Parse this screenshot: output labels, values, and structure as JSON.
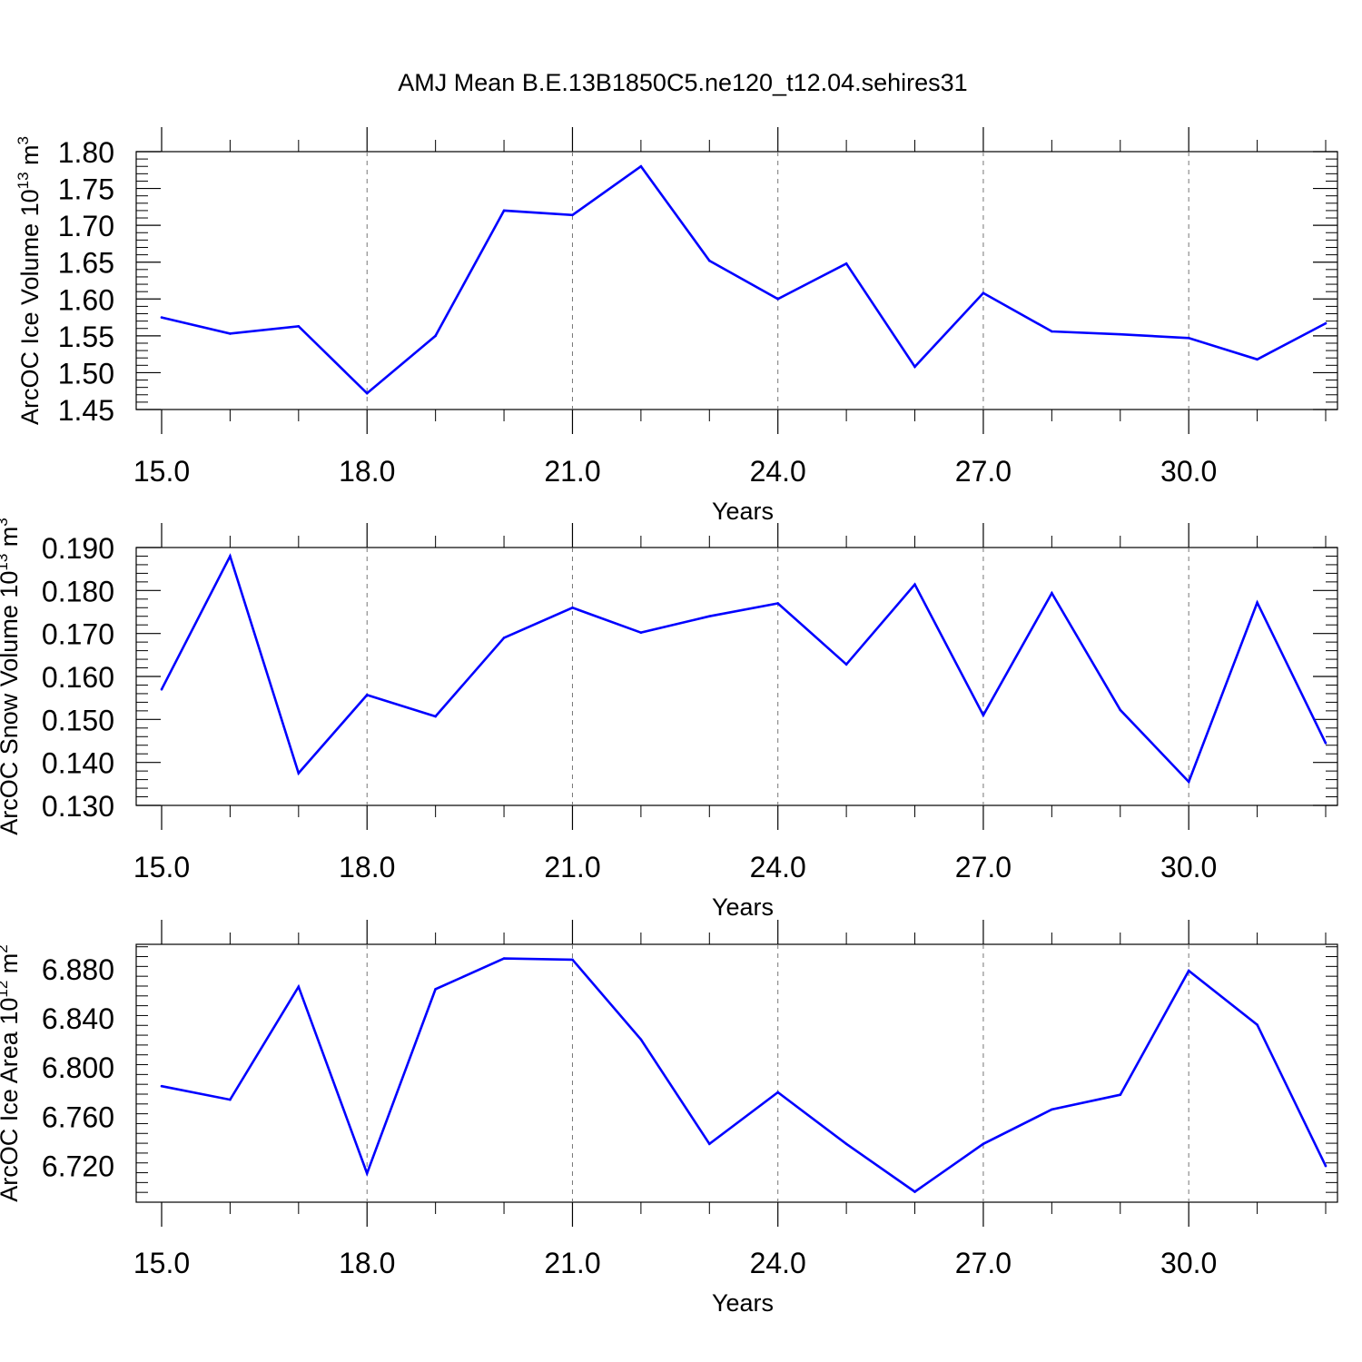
{
  "title": "AMJ Mean B.E.13B1850C5.ne120_t12.04.sehires31",
  "line_color": "#0000ff",
  "chart_data": [
    {
      "type": "line",
      "ylabel_main": "ArcOC Ice Volume 10",
      "ylabel_exp": "13",
      "ylabel_unit": "m",
      "ylabel_unit_exp": "3",
      "xlabel": "Years",
      "xlim": [
        15,
        32
      ],
      "ylim": [
        1.45,
        1.8
      ],
      "yticks_major": [
        "1.45",
        "1.50",
        "1.55",
        "1.60",
        "1.65",
        "1.70",
        "1.75",
        "1.80"
      ],
      "xticks_major": [
        "15.0",
        "18.0",
        "21.0",
        "24.0",
        "27.0",
        "30.0"
      ],
      "x": [
        15,
        16,
        17,
        18,
        19,
        20,
        21,
        22,
        23,
        24,
        25,
        26,
        27,
        28,
        29,
        30,
        31,
        32
      ],
      "values": [
        1.575,
        1.553,
        1.563,
        1.472,
        1.55,
        1.72,
        1.714,
        1.78,
        1.652,
        1.6,
        1.648,
        1.508,
        1.608,
        1.556,
        1.552,
        1.547,
        1.518,
        1.567
      ]
    },
    {
      "type": "line",
      "ylabel_main": "ArcOC Snow Volume 10",
      "ylabel_exp": "13",
      "ylabel_unit": "m",
      "ylabel_unit_exp": "3",
      "xlabel": "Years",
      "xlim": [
        15,
        32
      ],
      "ylim": [
        0.13,
        0.19
      ],
      "yticks_major": [
        "0.130",
        "0.140",
        "0.150",
        "0.160",
        "0.170",
        "0.180",
        "0.190"
      ],
      "xticks_major": [
        "15.0",
        "18.0",
        "21.0",
        "24.0",
        "27.0",
        "30.0"
      ],
      "x": [
        15,
        16,
        17,
        18,
        19,
        20,
        21,
        22,
        23,
        24,
        25,
        26,
        27,
        28,
        29,
        30,
        31,
        32
      ],
      "values": [
        0.157,
        0.188,
        0.1375,
        0.1557,
        0.1507,
        0.169,
        0.176,
        0.1702,
        0.174,
        0.177,
        0.1628,
        0.1814,
        0.151,
        0.1794,
        0.1522,
        0.1355,
        0.1772,
        0.1445
      ]
    },
    {
      "type": "line",
      "ylabel_main": "ArcOC Ice Area 10",
      "ylabel_exp": "12",
      "ylabel_unit": "m",
      "ylabel_unit_exp": "2",
      "xlabel": "Years",
      "xlim": [
        15,
        32
      ],
      "ylim": [
        6.69,
        6.9
      ],
      "yticks_major": [
        "6.720",
        "6.760",
        "6.800",
        "6.840",
        "6.880"
      ],
      "xticks_major": [
        "15.0",
        "18.0",
        "21.0",
        "24.0",
        "27.0",
        "30.0"
      ],
      "x": [
        15,
        16,
        17,
        18,
        19,
        20,
        21,
        22,
        23,
        24,
        25,
        26,
        27,
        28,
        29,
        30,
        31,
        32
      ],
      "values": [
        6.7845,
        6.7735,
        6.8655,
        6.7135,
        6.8635,
        6.8885,
        6.8875,
        6.8225,
        6.7375,
        6.7795,
        6.7375,
        6.6985,
        6.7375,
        6.7655,
        6.7775,
        6.8785,
        6.8345,
        6.7195
      ]
    }
  ]
}
